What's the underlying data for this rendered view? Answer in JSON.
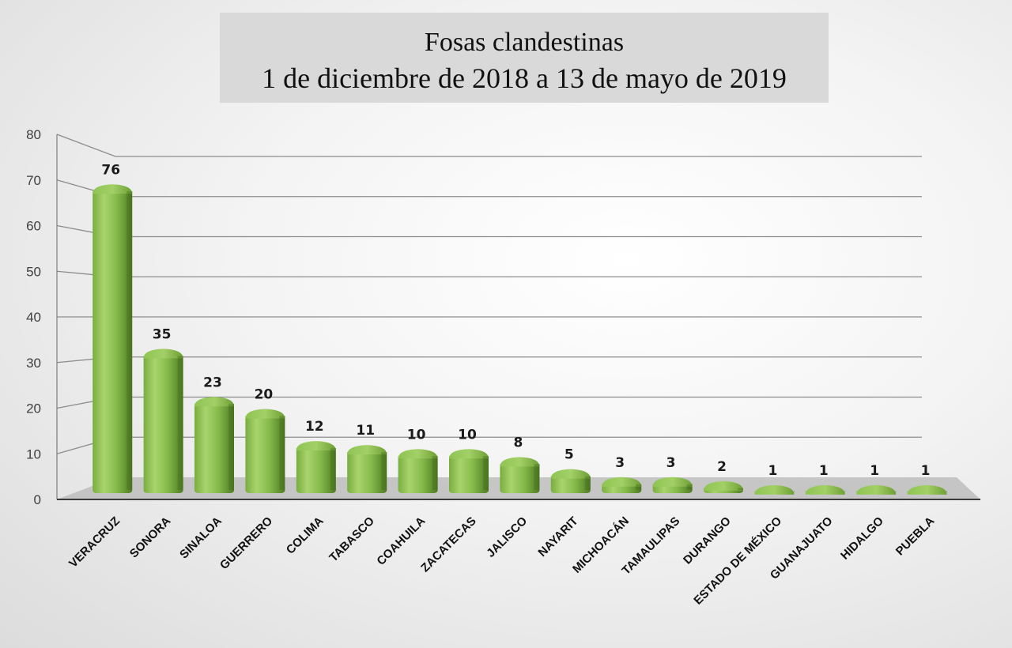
{
  "chart_data": {
    "type": "bar",
    "title": "Fosas clandestinas",
    "subtitle": "1 de diciembre de 2018 a 13 de mayo de 2019",
    "categories": [
      "VERACRUZ",
      "SONORA",
      "SINALOA",
      "GUERRERO",
      "COLIMA",
      "TABASCO",
      "COAHUILA",
      "ZACATECAS",
      "JALISCO",
      "NAYARIT",
      "MICHOACÁN",
      "TAMAULIPAS",
      "DURANGO",
      "ESTADO DE MÉXICO",
      "GUANAJUATO",
      "HIDALGO",
      "PUEBLA"
    ],
    "values": [
      76,
      35,
      23,
      20,
      12,
      11,
      10,
      10,
      8,
      5,
      3,
      3,
      2,
      1,
      1,
      1,
      1
    ],
    "yticks": [
      "0",
      "10",
      "20",
      "30",
      "40",
      "50",
      "60",
      "70",
      "80"
    ],
    "ylim": [
      0,
      80
    ],
    "xlabel": "",
    "ylabel": "",
    "grid": true,
    "legend": "none",
    "colors": {
      "bar_light": "#a6d26a",
      "bar_main": "#7fb244",
      "bar_dark": "#4f7a22",
      "bar_top": "#93c656",
      "gridline": "#8c8c8c",
      "floor": "#bdbdbd",
      "title_box": "#d9d9d9"
    }
  }
}
